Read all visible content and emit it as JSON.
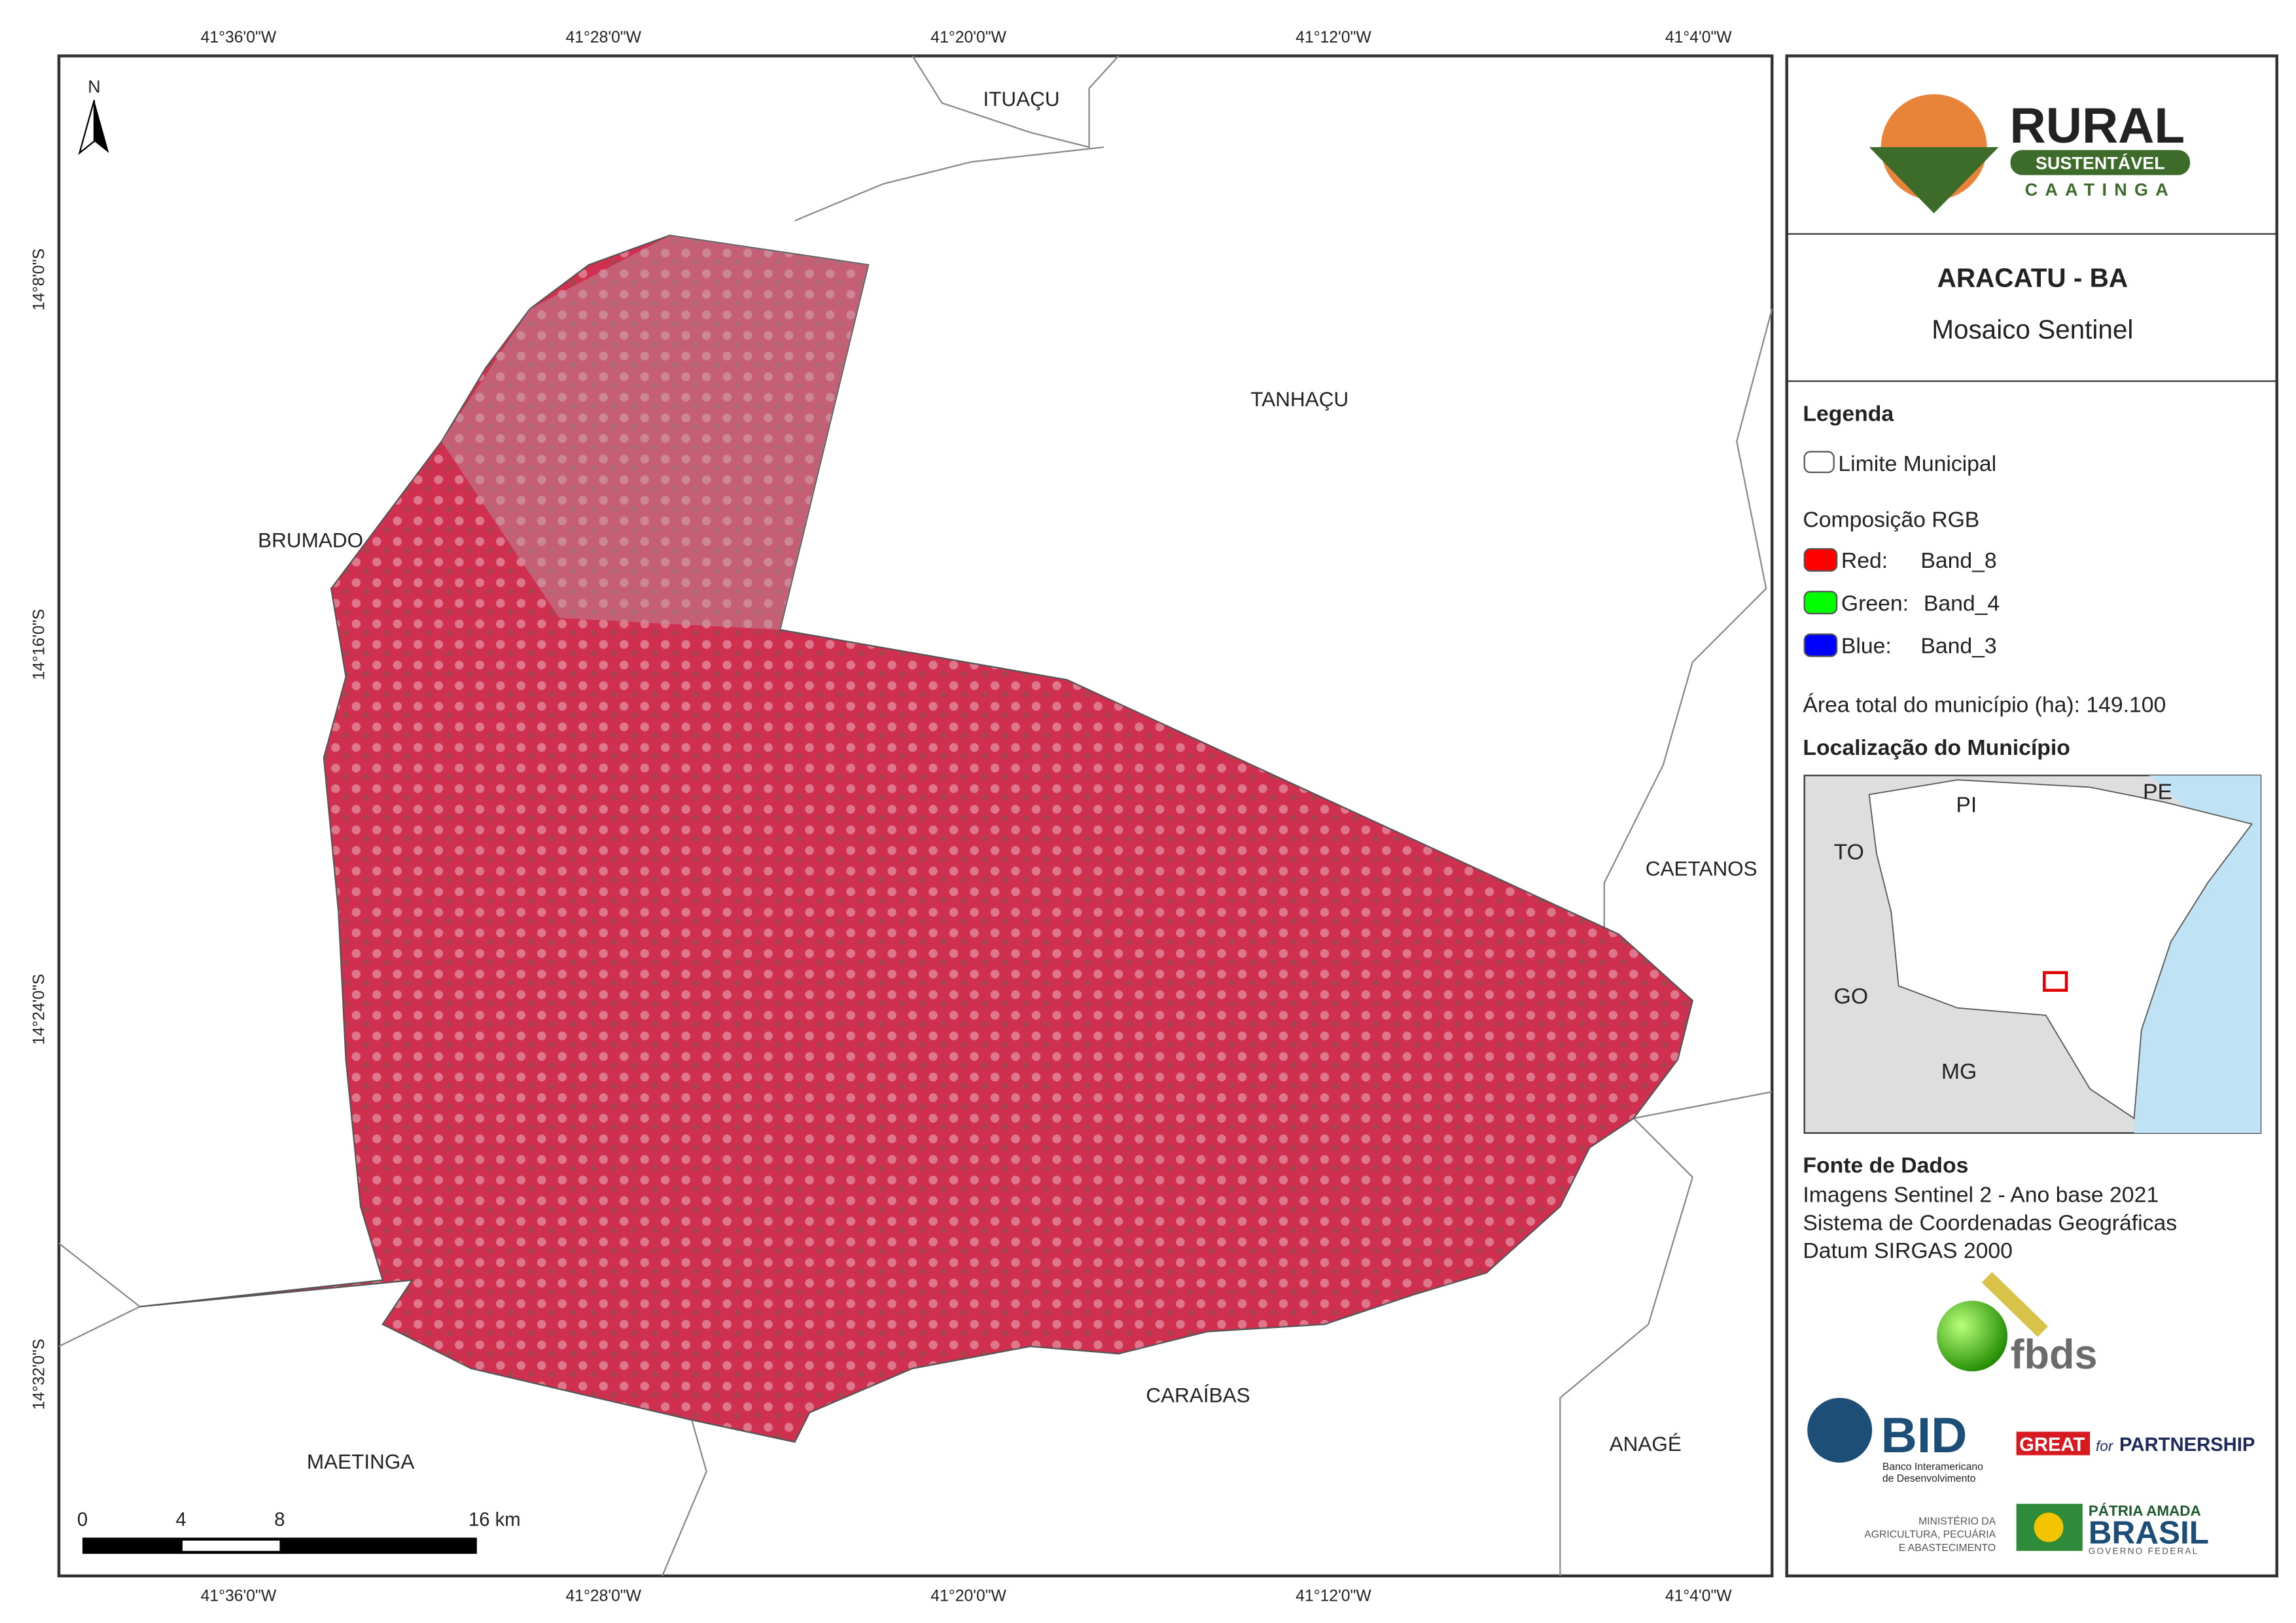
{
  "map": {
    "north": "N",
    "lon_ticks": [
      "41°36'0\"W",
      "41°28'0\"W",
      "41°20'0\"W",
      "41°12'0\"W",
      "41°4'0\"W"
    ],
    "lat_ticks": [
      "14°8'0\"S",
      "14°16'0\"S",
      "14°24'0\"S",
      "14°32'0\"S"
    ],
    "places": [
      "ITUAÇU",
      "TANHAÇU",
      "BRUMADO",
      "CAETANOS",
      "CARAÍBAS",
      "MAETINGA",
      "ANAGÉ"
    ],
    "scale_bar": [
      "0",
      "4",
      "8",
      "16 km"
    ]
  },
  "logo": {
    "name": "RURAL",
    "band": "SUSTENTÁVEL",
    "region": "CAATINGA"
  },
  "header": {
    "title": "ARACATU - BA",
    "subtitle": "Mosaico Sentinel"
  },
  "legend": {
    "title": "Legenda",
    "boundary": "Limite Municipal",
    "composition": "Composição RGB",
    "bands": [
      {
        "channel": "Red:",
        "band": "Band_8"
      },
      {
        "channel": "Green:",
        "band": "Band_4"
      },
      {
        "channel": "Blue:",
        "band": "Band_3"
      }
    ],
    "area": "Área total do município (ha): 149.100"
  },
  "inset": {
    "title": "Localização do Município",
    "labels": [
      "PI",
      "PE",
      "TO",
      "GO",
      "MG"
    ]
  },
  "sources": {
    "title": "Fonte de Dados",
    "lines": [
      "Imagens Sentinel 2 - Ano base 2021",
      "Sistema de Coordenadas Geográficas",
      "Datum SIRGAS 2000"
    ]
  },
  "partners": {
    "fbds": "fbds",
    "bid": "BID",
    "bid_lines": [
      "Banco Interamericano",
      "de Desenvolvimento"
    ],
    "great": "GREAT",
    "for": "for",
    "partnership": "PARTNERSHIP",
    "ministry": [
      "MINISTÉRIO DA",
      "AGRICULTURA, PECUÁRIA",
      "E ABASTECIMENTO"
    ],
    "gov": [
      "PÁTRIA AMADA",
      "BRASIL",
      "GOVERNO FEDERAL"
    ]
  }
}
